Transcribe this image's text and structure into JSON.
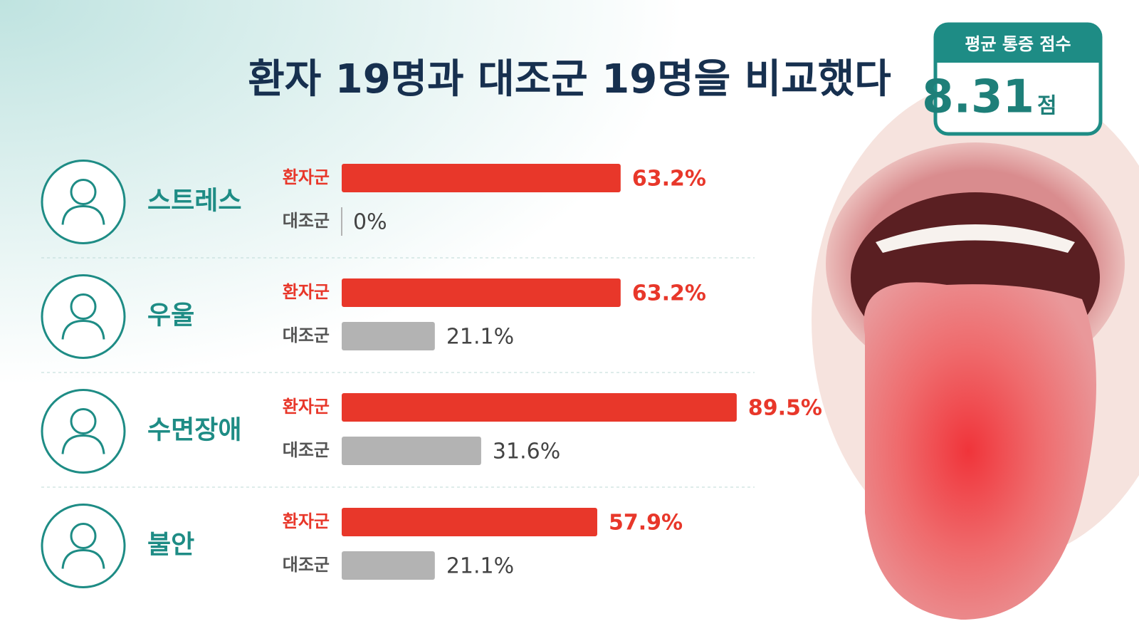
{
  "chart_data": {
    "type": "bar",
    "orientation": "horizontal",
    "title": "환자 19명과 대조군 19명을 비교했다",
    "categories": [
      "스트레스",
      "우울",
      "수면장애",
      "불안"
    ],
    "series": [
      {
        "name": "환자군",
        "color": "#e8372a",
        "values": [
          63.2,
          63.2,
          89.5,
          57.9
        ],
        "value_labels": [
          "63.2%",
          "63.2%",
          "89.5%",
          "57.9%"
        ]
      },
      {
        "name": "대조군",
        "color": "#b3b3b3",
        "values": [
          0,
          21.1,
          31.6,
          21.1
        ],
        "value_labels": [
          "0%",
          "21.1%",
          "31.6%",
          "21.1%"
        ]
      }
    ]
  },
  "badge": {
    "label": "평균 통증 점수",
    "value": 8.31,
    "unit": "점"
  }
}
